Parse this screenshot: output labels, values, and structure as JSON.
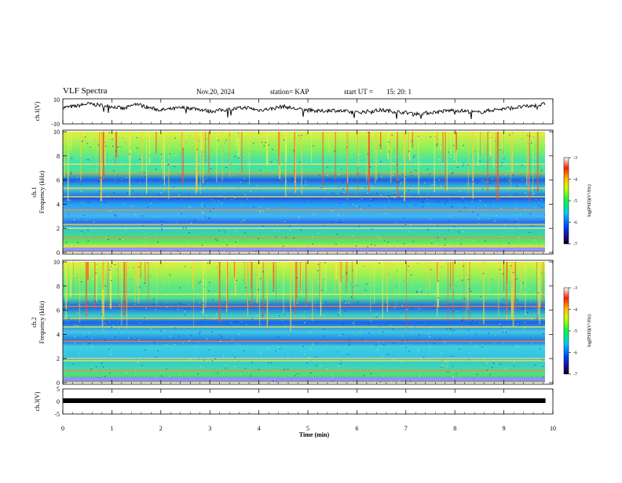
{
  "header": {
    "title": "VLF Spectra",
    "date": "Nov.20, 2024",
    "station": "station= KAP",
    "start_label": "start UT =",
    "start_value": "15: 20: 1"
  },
  "chart_data": [
    {
      "type": "line",
      "panel": "ch1-waveform",
      "ylabel": "ch.1(V)",
      "ylim": [
        -10,
        10
      ],
      "yticks": [
        "10",
        "-10"
      ],
      "xlim": [
        0,
        10
      ],
      "series": [
        {
          "x": [
            0,
            0.25,
            0.5,
            0.75,
            1.0,
            1.25,
            1.5,
            1.75,
            2.0,
            2.25,
            2.5,
            2.75,
            3.0,
            3.25,
            3.5,
            3.75,
            4.0,
            4.25,
            4.5,
            4.75,
            5.0,
            5.25,
            5.5,
            5.75,
            6.0,
            6.25,
            6.5,
            6.75,
            7.0,
            7.25,
            7.5,
            7.75,
            8.0,
            8.25,
            8.5,
            8.75,
            9.0,
            9.25,
            9.5,
            9.75,
            9.85
          ],
          "y": [
            3,
            4,
            6,
            5,
            4,
            2,
            6,
            3,
            1,
            2,
            3,
            2,
            0,
            1,
            2,
            3,
            1,
            2,
            4,
            2,
            1,
            0,
            1,
            0,
            -1,
            0,
            1,
            0,
            -1,
            -2,
            -1,
            0,
            1,
            0,
            -1,
            1,
            2,
            3,
            4,
            5,
            6
          ]
        }
      ]
    },
    {
      "type": "heatmap",
      "panel": "ch1-spectrogram",
      "ylabel": "ch.1\nFrequency (kHz)",
      "ylim": [
        0,
        10
      ],
      "yticks": [
        "0",
        "2",
        "4",
        "6",
        "8",
        "10"
      ],
      "xlim": [
        0,
        10
      ],
      "colorbar": {
        "label": "log(PSD)(V²/Hz)",
        "range": [
          -7,
          -3
        ],
        "ticks": [
          "-3",
          "-4",
          "-5",
          "-6",
          "-7"
        ]
      },
      "bands_khz": [
        0.3,
        1.2,
        2.0,
        2.3,
        3.5,
        4.6,
        5.3,
        6.5,
        7.3
      ]
    },
    {
      "type": "heatmap",
      "panel": "ch2-spectrogram",
      "ylabel": "ch.2\nFrequency (kHz)",
      "ylim": [
        0,
        10
      ],
      "yticks": [
        "0",
        "2",
        "4",
        "6",
        "8",
        "10"
      ],
      "xlim": [
        0,
        10
      ],
      "colorbar": {
        "label": "log(PSD)(V²/Hz)",
        "range": [
          -7,
          -3
        ],
        "ticks": [
          "-3",
          "-4",
          "-5",
          "-6",
          "-7"
        ]
      },
      "bands_khz": [
        0.3,
        1.0,
        1.8,
        2.0,
        3.4,
        4.6,
        5.3,
        6.3,
        7.3
      ]
    },
    {
      "type": "line",
      "panel": "ch3-waveform",
      "ylabel": "ch.3(V)",
      "ylim": [
        -5,
        5
      ],
      "yticks": [
        "5",
        "0",
        "-5"
      ],
      "xlim": [
        0,
        10
      ],
      "series": [
        {
          "x": [
            0,
            9.85
          ],
          "y": [
            0,
            0
          ]
        }
      ],
      "xlabel": "Time (min)",
      "xticks": [
        "0",
        "1",
        "2",
        "3",
        "4",
        "5",
        "6",
        "7",
        "8",
        "9",
        "10"
      ]
    }
  ]
}
